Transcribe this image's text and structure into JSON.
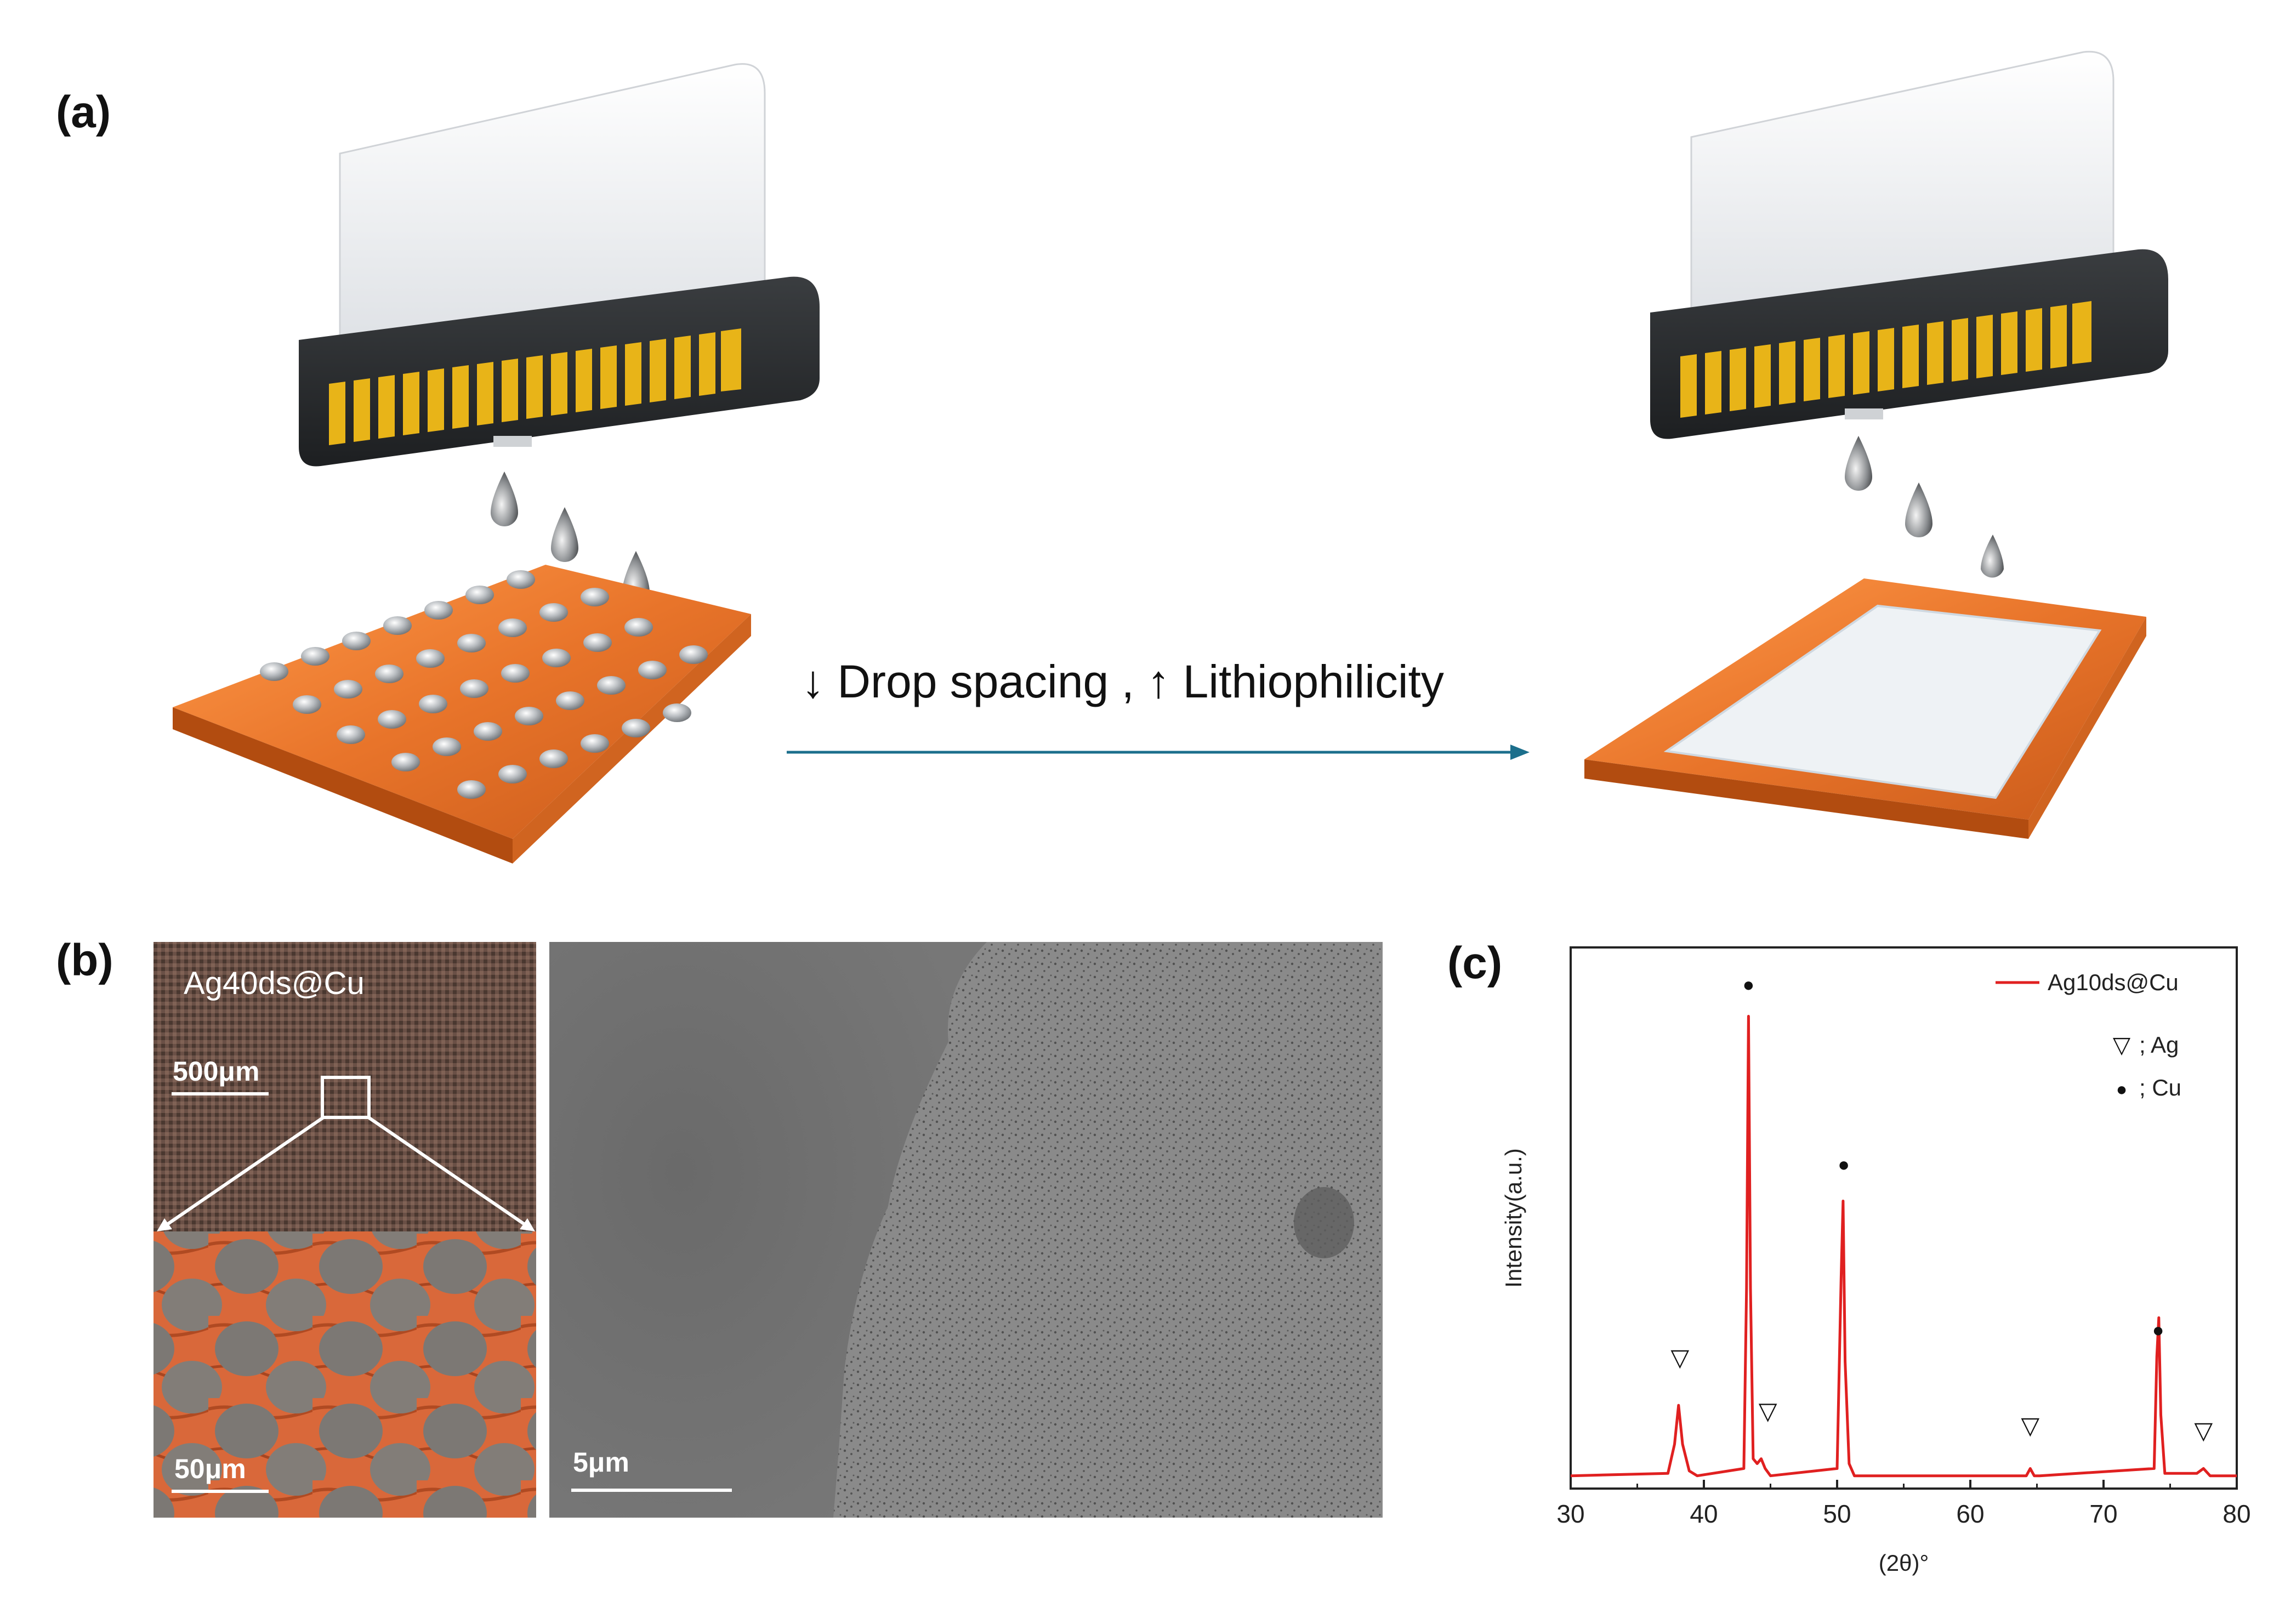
{
  "panels": {
    "a": {
      "label": "(a)",
      "arrow_text": "↓ Drop spacing , ↑ Lithiophilicity"
    },
    "b": {
      "label": "(b)",
      "sample_label": "Ag40ds@Cu",
      "scale_top": "500μm",
      "scale_zoom": "50μm",
      "scale_sem": "5μm"
    },
    "c": {
      "label": "(c)"
    }
  },
  "colors": {
    "copper": "#e8742a",
    "ink_gold": "#e8b418",
    "xrd_line": "#e02020",
    "arrow": "#1c6f8c"
  },
  "chart_data": {
    "type": "line",
    "xlabel": "(2θ)°",
    "ylabel": "Intensity(a.u.)",
    "xlim": [
      30,
      80
    ],
    "ylim": [
      0,
      100
    ],
    "xticks": [
      30,
      40,
      50,
      60,
      70,
      80
    ],
    "grid": false,
    "legend_position": "top-right",
    "series": [
      {
        "name": "Ag10ds@Cu",
        "x": [
          30,
          37.3,
          37.8,
          38.1,
          38.4,
          38.9,
          39.5,
          43.0,
          43.2,
          43.35,
          43.5,
          43.7,
          44.0,
          44.3,
          44.6,
          45.0,
          50.0,
          50.3,
          50.45,
          50.6,
          50.9,
          51.3,
          64.2,
          64.5,
          64.8,
          65.2,
          73.8,
          74.0,
          74.15,
          74.3,
          74.6,
          77.0,
          77.5,
          78.0,
          80
        ],
        "y": [
          1.5,
          2,
          8,
          16,
          8,
          2.5,
          1.5,
          3,
          40,
          96,
          40,
          5,
          4,
          5,
          3,
          1.5,
          3,
          42,
          58,
          25,
          4,
          1.5,
          1.5,
          3,
          1.5,
          1.5,
          3,
          26,
          34,
          14,
          2,
          2,
          3,
          1.5,
          1.5
        ]
      }
    ],
    "annotations": [
      {
        "x": 38.2,
        "y": 23,
        "symbol": "▽",
        "phase": "Ag"
      },
      {
        "x": 43.35,
        "y": 100,
        "symbol": "●",
        "phase": "Cu"
      },
      {
        "x": 44.8,
        "y": 12,
        "symbol": "▽",
        "phase": "Ag"
      },
      {
        "x": 50.5,
        "y": 63,
        "symbol": "●",
        "phase": "Cu"
      },
      {
        "x": 64.5,
        "y": 9,
        "symbol": "▽",
        "phase": "Ag"
      },
      {
        "x": 74.1,
        "y": 29,
        "symbol": "●",
        "phase": "Cu"
      },
      {
        "x": 77.5,
        "y": 8,
        "symbol": "▽",
        "phase": "Ag"
      }
    ],
    "phase_key": [
      {
        "symbol": "▽",
        "label": "; Ag"
      },
      {
        "symbol": "●",
        "label": "; Cu"
      }
    ]
  }
}
